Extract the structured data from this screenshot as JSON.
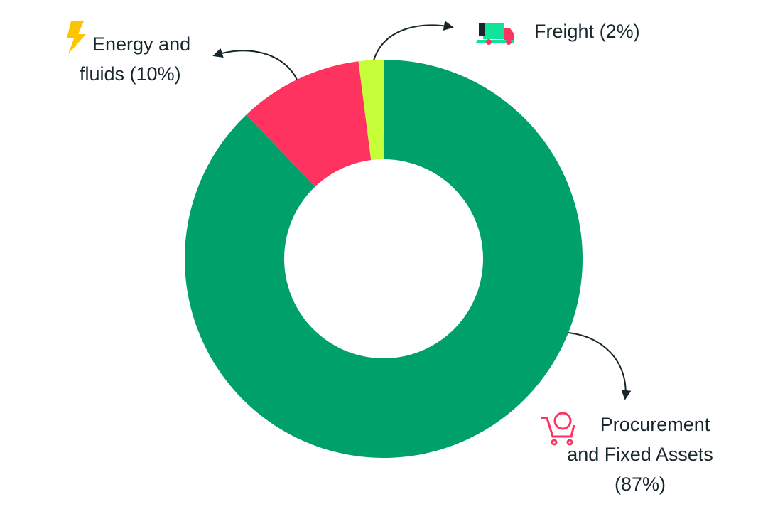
{
  "chart_data": {
    "type": "donut",
    "categories": [
      "Procurement and Fixed Assets",
      "Energy and fluids",
      "Freight"
    ],
    "values": [
      87,
      10,
      2
    ],
    "value_labels": [
      "(87%)",
      "(10%)",
      "(2%)"
    ],
    "colors": [
      "#00a06b",
      "#ff3360",
      "#c6ff3a"
    ]
  }
}
